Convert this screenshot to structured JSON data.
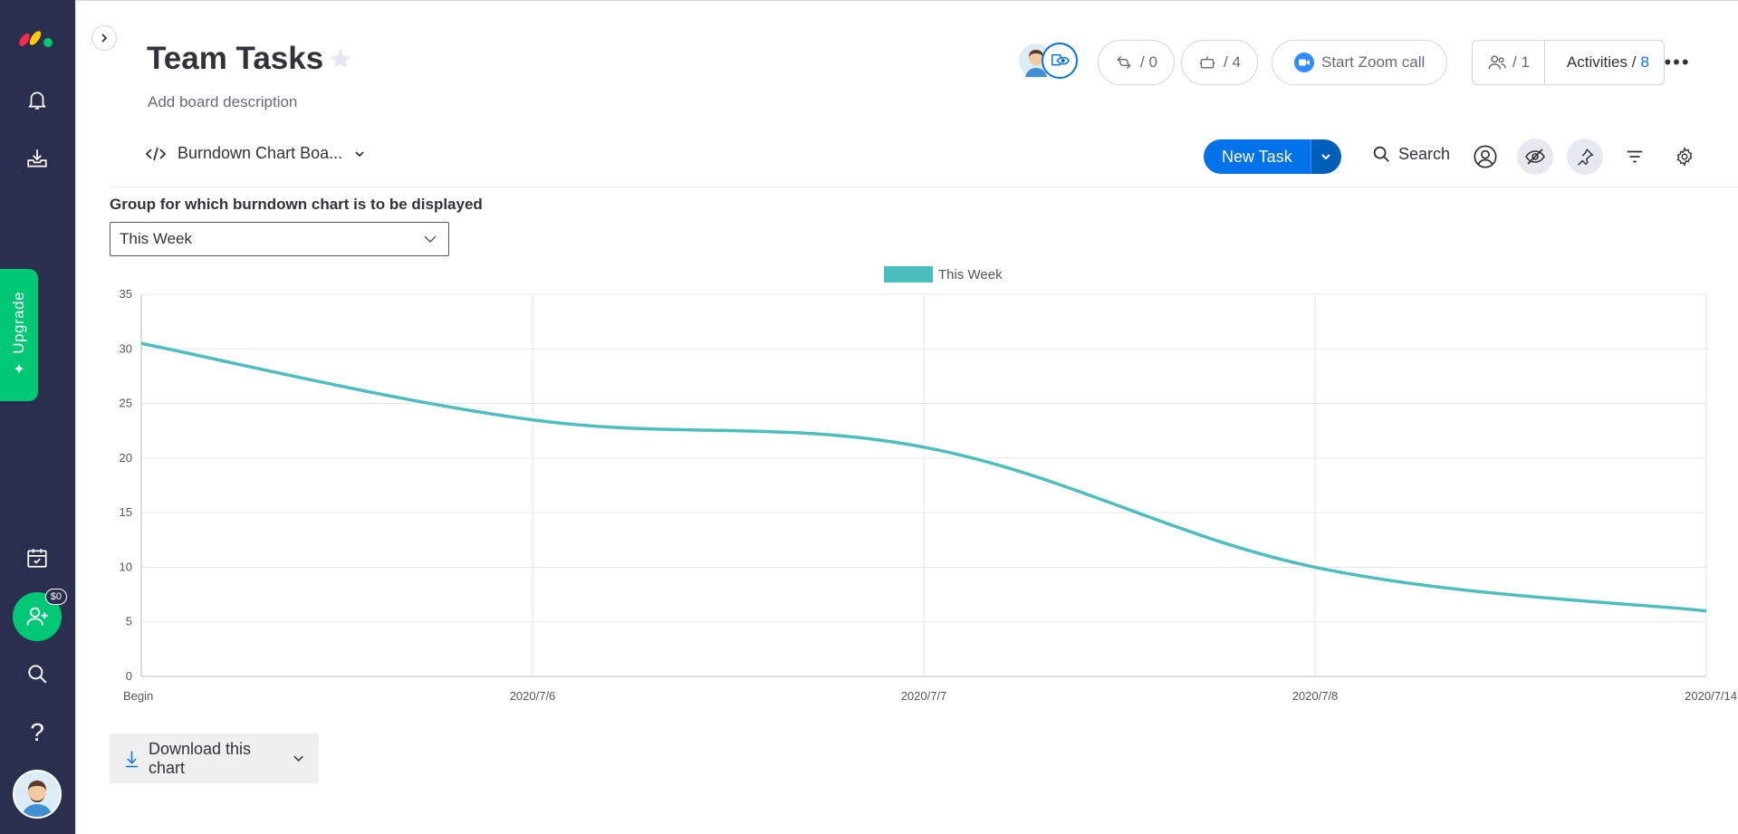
{
  "board": {
    "title": "Team Tasks",
    "description": "Add board description"
  },
  "header": {
    "integrations_count": "/ 0",
    "automations_count": "/ 4",
    "zoom_label": "Start Zoom call",
    "members_count": "/ 1",
    "activities_label": "Activities /",
    "activities_count": "8"
  },
  "toolbar": {
    "view_name": "Burndown Chart Boa...",
    "new_task_label": "New Task",
    "search_label": "Search"
  },
  "widget": {
    "group_label": "Group for which burndown chart is to be displayed",
    "group_selected": "This Week",
    "download_label": "Download this chart"
  },
  "rail": {
    "invite_badge": "$0",
    "upgrade_label": "Upgrade"
  },
  "colors": {
    "accent": "#0073ea",
    "line": "#4bbfbe",
    "rail": "#292f4c",
    "upgrade": "#00c875"
  },
  "chart_data": {
    "type": "line",
    "categories": [
      "Begin",
      "2020/7/6",
      "2020/7/7",
      "2020/7/8",
      "2020/7/14"
    ],
    "series": [
      {
        "name": "This Week",
        "values": [
          30.5,
          23.5,
          21,
          10,
          6
        ]
      }
    ],
    "y_ticks": [
      "0",
      "5",
      "10",
      "15",
      "20",
      "25",
      "30",
      "35"
    ],
    "ylim": [
      0,
      35
    ],
    "legend": "top-center",
    "grid": true
  }
}
